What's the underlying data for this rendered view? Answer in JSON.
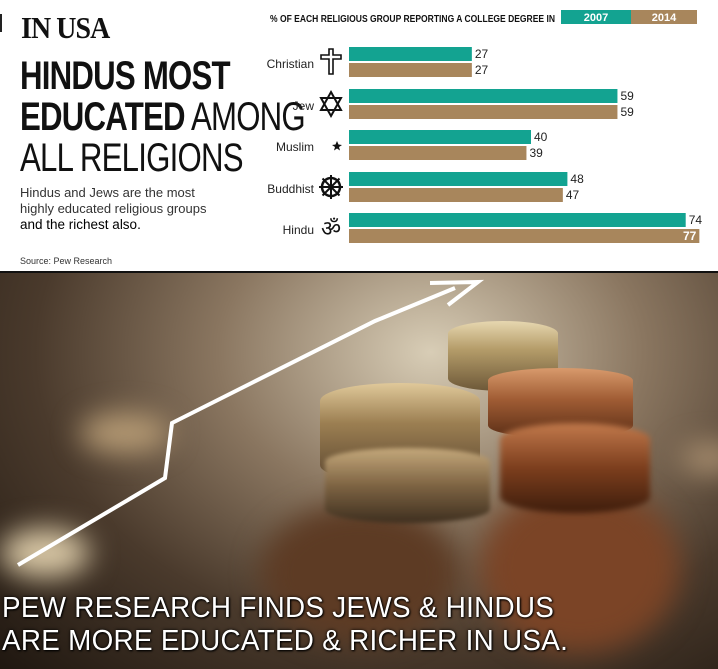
{
  "headline": {
    "kicker": "IN USA",
    "line1": "HINDUS MOST",
    "line2_bold": "EDUCATED",
    "line2_thin": "AMONG",
    "line3": "ALL RELIGIONS"
  },
  "subtext": {
    "line1": "Hindus and Jews are the most",
    "line2": "highly educated religious groups",
    "line3": "and the richest also."
  },
  "source": "Source: Pew Research",
  "caption": {
    "line1": "PEW RESEARCH FINDS JEWS & HINDUS",
    "line2": "ARE MORE EDUCATED & RICHER IN USA."
  },
  "colors": {
    "series_2007": "#13a391",
    "series_2014": "#a8865c",
    "text_dark": "#111111"
  },
  "chart_data": {
    "type": "bar",
    "orientation": "horizontal",
    "title": "% OF EACH RELIGIOUS GROUP REPORTING A COLLEGE DEGREE IN",
    "categories": [
      "Christian",
      "Jew",
      "Muslim",
      "Buddhist",
      "Hindu"
    ],
    "icons": [
      "latin-cross-icon",
      "star-of-david-icon",
      "crescent-star-icon",
      "dharma-wheel-icon",
      "om-icon"
    ],
    "series": [
      {
        "name": "2007",
        "values": [
          27,
          59,
          40,
          48,
          74
        ]
      },
      {
        "name": "2014",
        "values": [
          27,
          59,
          39,
          47,
          77
        ]
      }
    ],
    "legend_position": "top",
    "grid": false
  }
}
